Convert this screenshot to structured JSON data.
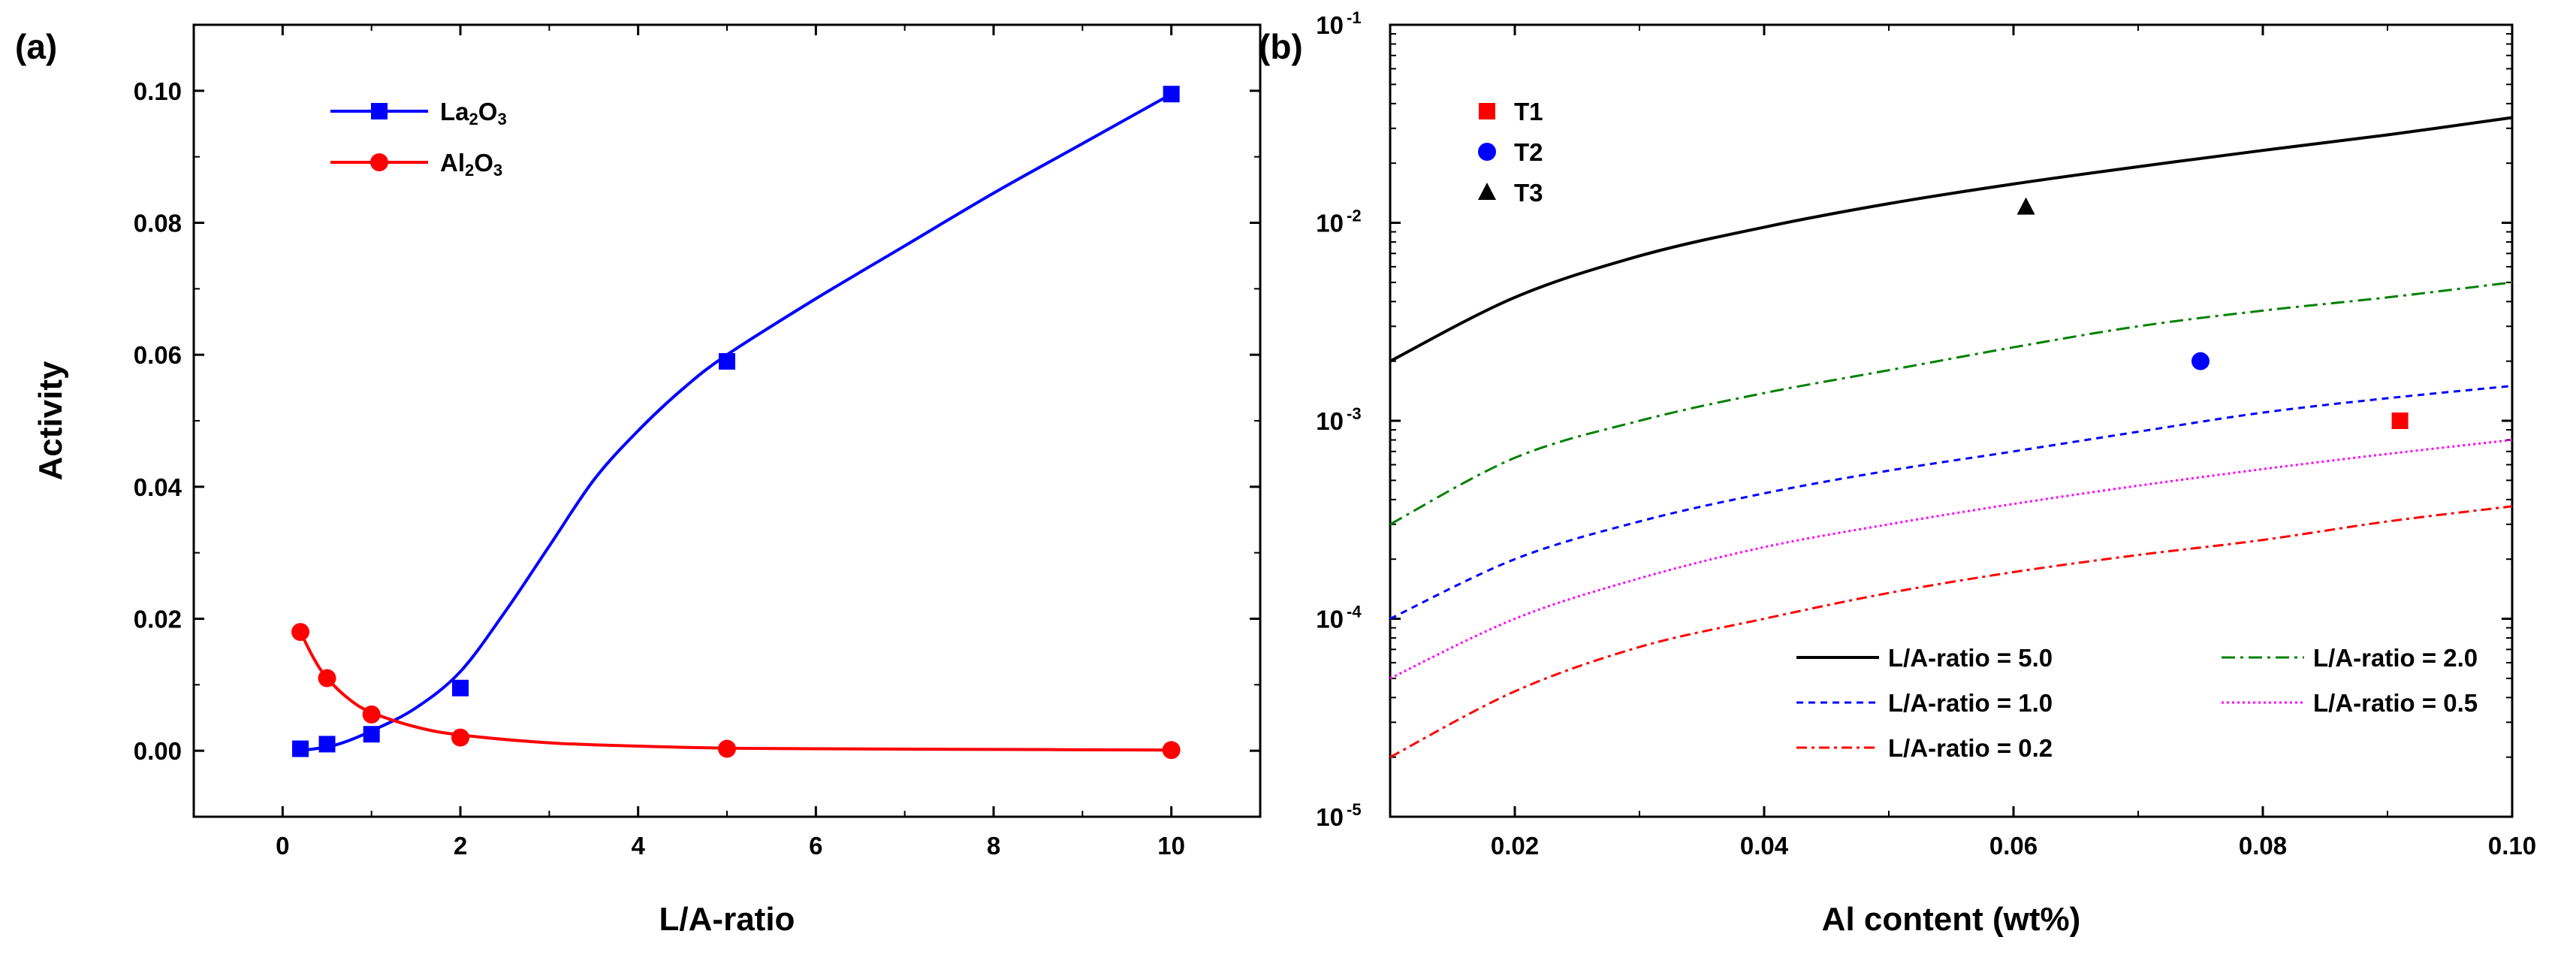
{
  "chart_data": [
    {
      "type": "line",
      "panel_label": "(a)",
      "xlabel": "L/A-ratio",
      "ylabel": "Activity",
      "xlim": [
        -1,
        11
      ],
      "ylim": [
        -0.01,
        0.11
      ],
      "xticks": [
        0,
        2,
        4,
        6,
        8,
        10
      ],
      "yticks": [
        0.0,
        0.02,
        0.04,
        0.06,
        0.08,
        0.1
      ],
      "xtick_labels": [
        "0",
        "2",
        "4",
        "6",
        "8",
        "10"
      ],
      "ytick_labels": [
        "0.00",
        "0.02",
        "0.04",
        "0.06",
        "0.08",
        "0.10"
      ],
      "legend_position": "top-left",
      "series": [
        {
          "name": "La2O3",
          "legend_main": "La",
          "legend_sub1": "2",
          "legend_mid": "O",
          "legend_sub2": "3",
          "color": "#0000ff",
          "marker": "square",
          "x": [
            0.2,
            0.5,
            1,
            2,
            5,
            10
          ],
          "y": [
            0.0003,
            0.001,
            0.0025,
            0.0095,
            0.059,
            0.0995
          ],
          "fit_x": [
            0.2,
            0.6,
            1.0,
            1.5,
            2.0,
            2.5,
            3.0,
            3.5,
            4.0,
            4.5,
            5.0,
            6.0,
            7.0,
            8.0,
            9.0,
            10.0
          ],
          "fit_y": [
            0.0,
            0.0009,
            0.003,
            0.0065,
            0.012,
            0.021,
            0.031,
            0.041,
            0.0485,
            0.0548,
            0.06,
            0.0685,
            0.0765,
            0.0845,
            0.092,
            0.0995
          ]
        },
        {
          "name": "Al2O3",
          "legend_main": "Al",
          "legend_sub1": "2",
          "legend_mid": "O",
          "legend_sub2": "3",
          "color": "#ff0000",
          "marker": "circle",
          "x": [
            0.2,
            0.5,
            1,
            2,
            5,
            10
          ],
          "y": [
            0.018,
            0.011,
            0.0055,
            0.002,
            0.0003,
            0.0001
          ],
          "fit_x": [
            0.2,
            0.35,
            0.5,
            0.75,
            1.0,
            1.5,
            2.0,
            3.0,
            4.0,
            5.0,
            6.0,
            8.0,
            10.0
          ],
          "fit_y": [
            0.018,
            0.014,
            0.011,
            0.0078,
            0.0058,
            0.0036,
            0.0024,
            0.0012,
            0.0007,
            0.0004,
            0.0003,
            0.0002,
            0.0001
          ]
        }
      ]
    },
    {
      "type": "line",
      "panel_label": "(b)",
      "xlabel": "Al content (wt%)",
      "ylabel": "",
      "yscale": "log",
      "xlim": [
        0.01,
        0.1
      ],
      "ylim": [
        1e-05,
        0.1
      ],
      "xticks": [
        0.02,
        0.04,
        0.06,
        0.08,
        0.1
      ],
      "xtick_labels": [
        "0.02",
        "0.04",
        "0.06",
        "0.08",
        "0.10"
      ],
      "ytick_exponents": [
        "-5",
        "-4",
        "-3",
        "-2",
        "-1"
      ],
      "ytick_base": "10",
      "legend_position": "bottom-right",
      "curves": [
        {
          "name": "L/A-ratio = 5.0",
          "color": "#000000",
          "dash": "",
          "x": [
            0.01,
            0.02,
            0.03,
            0.04,
            0.05,
            0.06,
            0.07,
            0.08,
            0.09,
            0.1
          ],
          "y": [
            0.002,
            0.0042,
            0.0068,
            0.0095,
            0.0125,
            0.0157,
            0.0192,
            0.0232,
            0.0278,
            0.034
          ]
        },
        {
          "name": "L/A-ratio = 2.0",
          "color": "#008000",
          "dash": "18,7,4,7",
          "x": [
            0.01,
            0.02,
            0.03,
            0.04,
            0.05,
            0.06,
            0.07,
            0.08,
            0.09,
            0.1
          ],
          "y": [
            0.0003,
            0.00065,
            0.001,
            0.00138,
            0.0018,
            0.00235,
            0.003,
            0.0036,
            0.0042,
            0.005
          ]
        },
        {
          "name": "L/A-ratio = 1.0",
          "color": "#0000ff",
          "dash": "9,7",
          "x": [
            0.01,
            0.02,
            0.03,
            0.04,
            0.05,
            0.06,
            0.07,
            0.08,
            0.09,
            0.1
          ],
          "y": [
            0.0001,
            0.0002,
            0.00031,
            0.00043,
            0.00056,
            0.0007,
            0.00088,
            0.0011,
            0.0013,
            0.0015
          ]
        },
        {
          "name": "L/A-ratio = 0.5",
          "color": "#ff00ff",
          "dash": "3,4",
          "x": [
            0.01,
            0.02,
            0.03,
            0.04,
            0.05,
            0.06,
            0.07,
            0.08,
            0.09,
            0.1
          ],
          "y": [
            5e-05,
            0.0001,
            0.00016,
            0.00023,
            0.0003,
            0.00038,
            0.00047,
            0.00057,
            0.00068,
            0.0008
          ]
        },
        {
          "name": "L/A-ratio = 0.2",
          "color": "#ff0000",
          "dash": "14,6,4,6",
          "x": [
            0.01,
            0.02,
            0.03,
            0.04,
            0.05,
            0.06,
            0.07,
            0.08,
            0.09,
            0.1
          ],
          "y": [
            2e-05,
            4.3e-05,
            7.2e-05,
            0.0001,
            0.000135,
            0.000172,
            0.00021,
            0.00025,
            0.00031,
            0.00037
          ]
        }
      ],
      "points": [
        {
          "name": "T1",
          "color": "#ff0000",
          "marker": "square",
          "x": 0.091,
          "y": 0.001
        },
        {
          "name": "T2",
          "color": "#0000ff",
          "marker": "circle",
          "x": 0.075,
          "y": 0.002
        },
        {
          "name": "T3",
          "color": "#000000",
          "marker": "triangle",
          "x": 0.061,
          "y": 0.012
        }
      ]
    }
  ]
}
